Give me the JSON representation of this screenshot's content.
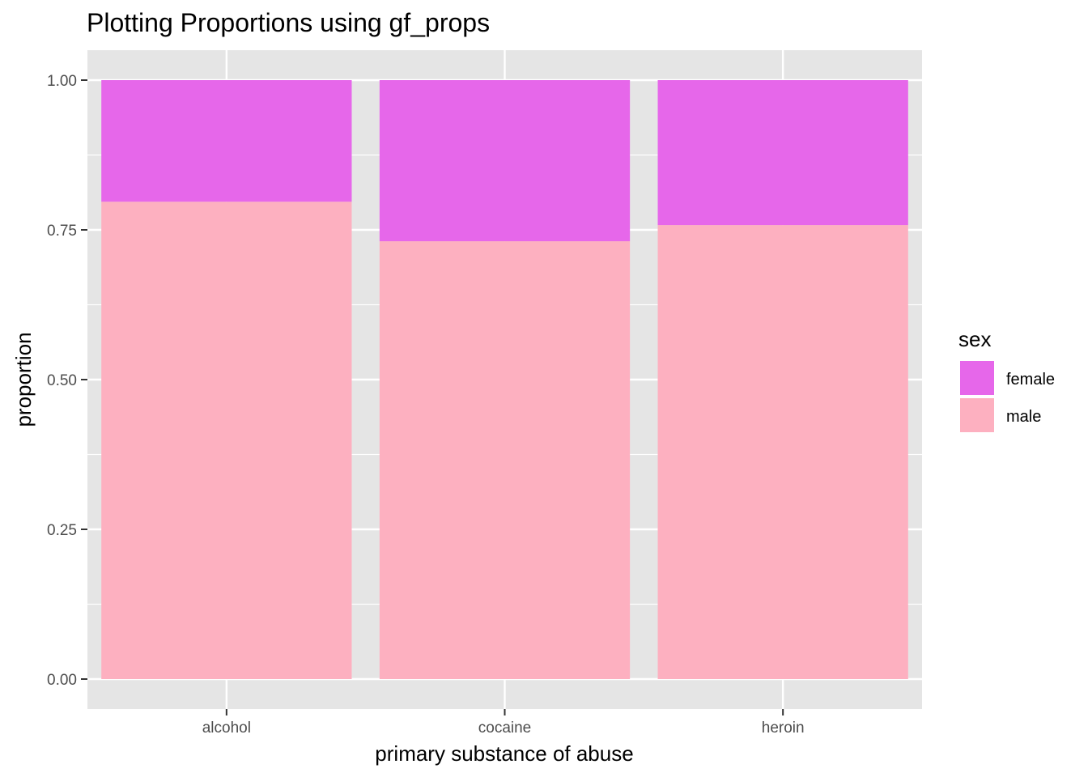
{
  "chart_data": {
    "type": "bar",
    "stacked": true,
    "title": "Plotting Proportions using gf_props",
    "xlabel": "primary substance of abuse",
    "ylabel": "proportion",
    "categories": [
      "alcohol",
      "cocaine",
      "heroin"
    ],
    "series": [
      {
        "name": "male",
        "values": [
          0.797,
          0.731,
          0.758
        ],
        "color": "#FDB0C0"
      },
      {
        "name": "female",
        "values": [
          0.203,
          0.269,
          0.242
        ],
        "color": "#E667EA"
      }
    ],
    "ylim": [
      -0.05,
      1.05
    ],
    "yticks": [
      0.0,
      0.25,
      0.5,
      0.75,
      1.0
    ],
    "ytick_labels": [
      "0.00",
      "0.25",
      "0.50",
      "0.75",
      "1.00"
    ],
    "grid": true,
    "panel_background": "#E5E5E5",
    "legend": {
      "title": "sex",
      "placement": "right",
      "entries": [
        {
          "label": "female",
          "color": "#E667EA"
        },
        {
          "label": "male",
          "color": "#FDB0C0"
        }
      ]
    }
  }
}
